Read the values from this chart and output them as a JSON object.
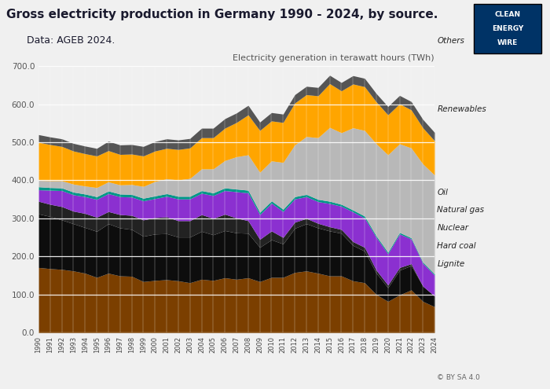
{
  "years": [
    1990,
    1991,
    1992,
    1993,
    1994,
    1995,
    1996,
    1997,
    1998,
    1999,
    2000,
    2001,
    2002,
    2003,
    2004,
    2005,
    2006,
    2007,
    2008,
    2009,
    2010,
    2011,
    2012,
    2013,
    2014,
    2015,
    2016,
    2017,
    2018,
    2019,
    2020,
    2021,
    2022,
    2023,
    2024
  ],
  "lignite": [
    171,
    168,
    166,
    162,
    156,
    145,
    156,
    149,
    148,
    134,
    137,
    139,
    136,
    131,
    140,
    137,
    144,
    140,
    144,
    134,
    145,
    145,
    158,
    162,
    156,
    149,
    149,
    136,
    131,
    100,
    82,
    99,
    112,
    82,
    68
  ],
  "hard_coal": [
    141,
    137,
    130,
    124,
    120,
    121,
    130,
    126,
    123,
    119,
    122,
    121,
    115,
    120,
    126,
    120,
    124,
    122,
    117,
    90,
    99,
    88,
    116,
    124,
    119,
    118,
    112,
    93,
    83,
    56,
    36,
    65,
    64,
    40,
    28
  ],
  "nuclear": [
    33,
    32,
    35,
    33,
    37,
    37,
    32,
    35,
    37,
    43,
    43,
    44,
    43,
    43,
    44,
    43,
    43,
    39,
    33,
    21,
    23,
    17,
    16,
    14,
    12,
    11,
    10,
    10,
    10,
    8,
    7,
    7,
    5,
    0,
    0
  ],
  "natural_gas": [
    30,
    37,
    42,
    43,
    44,
    47,
    47,
    47,
    48,
    50,
    50,
    54,
    57,
    57,
    56,
    60,
    62,
    69,
    73,
    65,
    73,
    68,
    61,
    57,
    57,
    61,
    61,
    78,
    77,
    86,
    82,
    88,
    65,
    60,
    55
  ],
  "oil": [
    8,
    7,
    7,
    7,
    7,
    7,
    7,
    7,
    7,
    7,
    7,
    7,
    7,
    7,
    7,
    7,
    7,
    7,
    7,
    6,
    6,
    6,
    6,
    6,
    6,
    6,
    5,
    5,
    5,
    4,
    4,
    4,
    3,
    3,
    3
  ],
  "renewables": [
    17,
    18,
    19,
    21,
    21,
    24,
    24,
    24,
    26,
    31,
    38,
    39,
    43,
    47,
    57,
    63,
    72,
    85,
    93,
    105,
    105,
    123,
    136,
    152,
    162,
    194,
    188,
    216,
    225,
    242,
    256,
    233,
    236,
    258,
    260
  ],
  "yellow_other": [
    100,
    95,
    90,
    87,
    85,
    83,
    82,
    80,
    80,
    80,
    80,
    80,
    80,
    80,
    82,
    82,
    85,
    90,
    105,
    110,
    105,
    105,
    110,
    110,
    110,
    115,
    110,
    115,
    115,
    110,
    105,
    105,
    100,
    95,
    90
  ],
  "dark_top": [
    20,
    20,
    20,
    20,
    20,
    20,
    25,
    25,
    25,
    25,
    25,
    25,
    25,
    25,
    25,
    25,
    25,
    25,
    25,
    22,
    22,
    22,
    22,
    22,
    22,
    22,
    22,
    22,
    22,
    22,
    22,
    22,
    22,
    22,
    22
  ],
  "colors": {
    "lignite": "#7B3F00",
    "hard_coal": "#0d0d0d",
    "nuclear": "#222222",
    "natural_gas": "#8B30D0",
    "oil": "#009688",
    "renewables": "#B8B8B8",
    "yellow_other": "#FFA500",
    "dark_top": "#555555"
  },
  "title": "Gross electricity production in Germany 1990 - 2024, by source.",
  "subtitle": "Data: AGEB 2024.",
  "ylabel": "Electricity generation in terawatt hours (TWh)",
  "ylim": [
    0,
    700
  ],
  "yticks": [
    0,
    100,
    200,
    300,
    400,
    500,
    600,
    700
  ],
  "background_color": "#f0f0f0",
  "plot_bg": "#f0f0f0"
}
